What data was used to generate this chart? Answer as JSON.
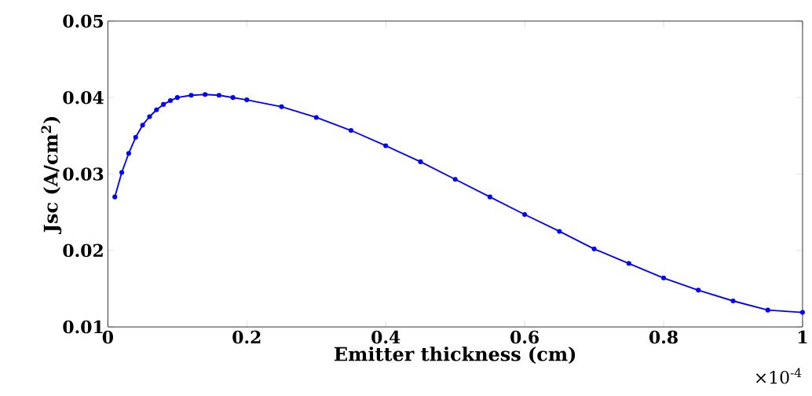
{
  "chart_data": {
    "type": "line",
    "xlabel": "Emitter thickness (cm)",
    "ylabel": "Jsc (A/cm$^{2}$)",
    "annotations": [
      "×10$^{-4}$"
    ],
    "x": [
      0.01,
      0.02,
      0.03,
      0.04,
      0.05,
      0.06,
      0.07,
      0.08,
      0.09,
      0.1,
      0.12,
      0.14,
      0.16,
      0.18,
      0.2,
      0.25,
      0.3,
      0.35,
      0.4,
      0.45,
      0.5,
      0.55,
      0.6,
      0.65,
      0.7,
      0.75,
      0.8,
      0.85,
      0.9,
      0.95,
      1.0
    ],
    "series": [
      {
        "color": "#0000ff",
        "values": [
          0.027,
          0.0302,
          0.0327,
          0.0348,
          0.0364,
          0.0375,
          0.0384,
          0.0391,
          0.0396,
          0.04,
          0.0403,
          0.0404,
          0.0403,
          0.04,
          0.0397,
          0.0388,
          0.0374,
          0.0357,
          0.0337,
          0.0316,
          0.0293,
          0.027,
          0.0247,
          0.0225,
          0.0202,
          0.0183,
          0.0164,
          0.0148,
          0.0134,
          0.0122,
          0.0119
        ]
      }
    ],
    "xlim": [
      0,
      1
    ],
    "ylim": [
      0.01,
      0.05
    ],
    "xticks": [
      0,
      0.2,
      0.4,
      0.6,
      0.8,
      1
    ],
    "yticks": [
      0.01,
      0.02,
      0.03,
      0.04,
      0.05
    ],
    "grid": false,
    "legend": false,
    "marker": "circle",
    "line_style": "solid"
  }
}
